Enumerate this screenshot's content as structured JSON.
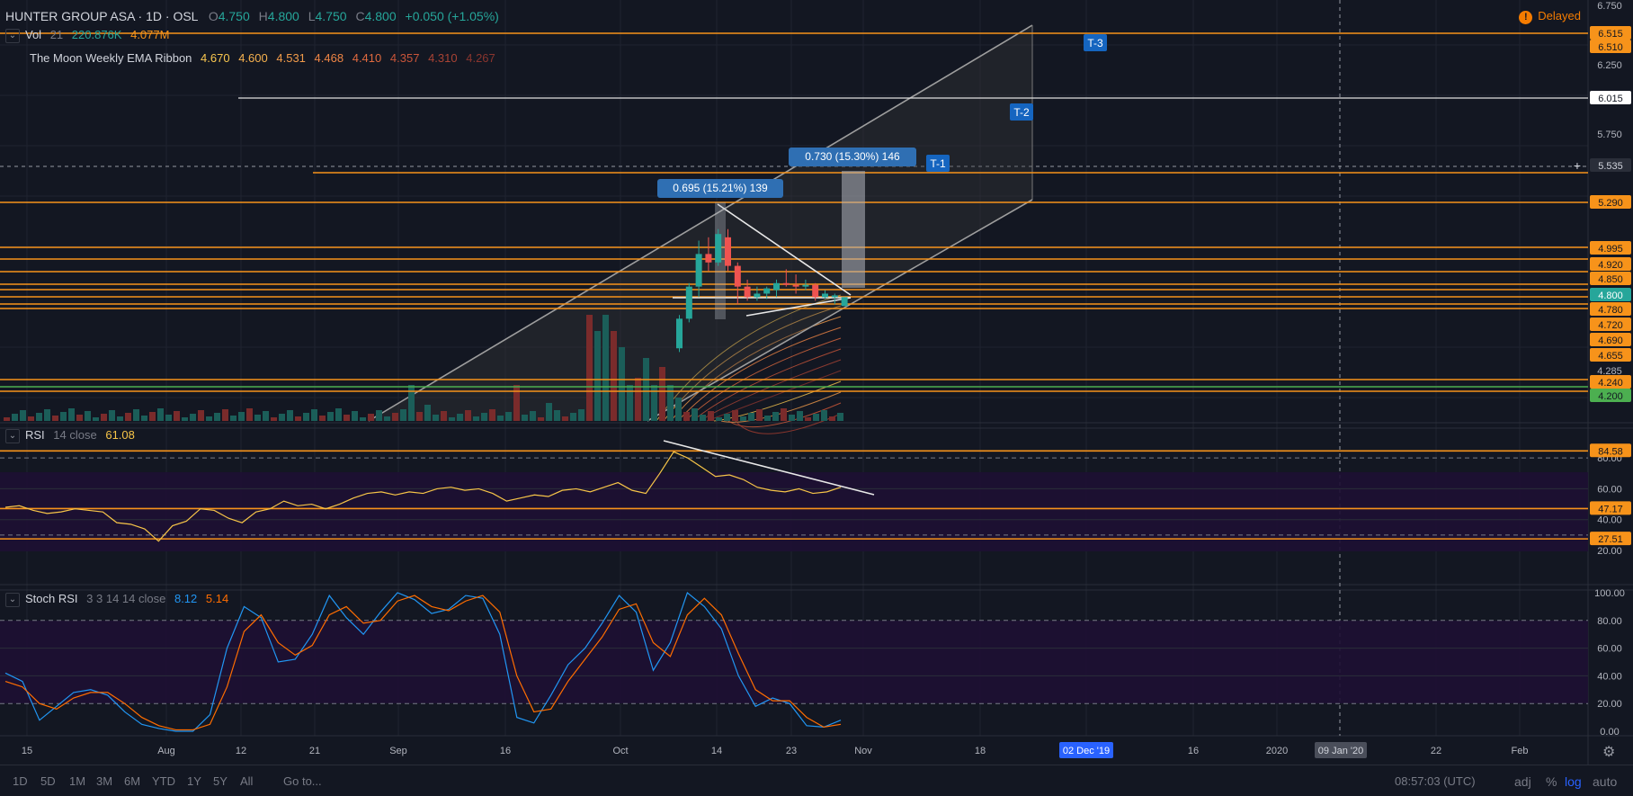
{
  "header": {
    "symbol": "HUNTER GROUP ASA · 1D · OSL",
    "open_label": "O",
    "open": "4.750",
    "high_label": "H",
    "high": "4.800",
    "low_label": "L",
    "low": "4.750",
    "close_label": "C",
    "close": "4.800",
    "change": "+0.050 (+1.05%)"
  },
  "delayed_label": "Delayed",
  "delayed_icon": "exclamation-icon",
  "vol_row": {
    "name": "Vol",
    "param": "21",
    "v1": "220.876K",
    "v2": "4.077M"
  },
  "ema_row": {
    "name": "The Moon Weekly EMA Ribbon",
    "values": [
      "4.670",
      "4.600",
      "4.531",
      "4.468",
      "4.410",
      "4.357",
      "4.310",
      "4.267"
    ]
  },
  "rsi_row": {
    "name": "RSI",
    "param": "14 close",
    "value": "61.08"
  },
  "stoch_row": {
    "name": "Stoch RSI",
    "param": "3 3 14 14 close",
    "k": "8.12",
    "d": "5.14"
  },
  "clock": "08:57:03 (UTC)",
  "ranges": [
    "1D",
    "5D",
    "1M",
    "3M",
    "6M",
    "YTD",
    "1Y",
    "5Y",
    "All"
  ],
  "goto_label": "Go to...",
  "bottom_options": {
    "adj": "adj",
    "percent": "%",
    "log": "log",
    "auto": "auto"
  },
  "colors": {
    "up": "#26a69a",
    "down": "#ef5350",
    "level": "#f7931a",
    "accent": "#2962ff",
    "panel_purple": "#1e0f33"
  },
  "chart_data": [
    {
      "type": "candlestick",
      "panel": "price",
      "y_ticks": [
        "6.750",
        "6.250",
        "5.750",
        "4.285"
      ],
      "price_levels": [
        "6.515",
        "6.510",
        "6.015",
        "5.535",
        "5.290",
        "4.995",
        "4.920",
        "4.850",
        "4.800",
        "4.780",
        "4.720",
        "4.690",
        "4.655",
        "4.240",
        "4.200"
      ],
      "targets": [
        "T-1",
        "T-2",
        "T-3"
      ],
      "measurements": [
        "0.695 (15.21%) 139",
        "0.730 (15.30%) 146"
      ],
      "x_labels": [
        "15",
        "Aug",
        "12",
        "21",
        "Sep",
        "16",
        "Oct",
        "14",
        "23",
        "Nov",
        "18",
        "02 Dec '19",
        "16",
        "2020",
        "09 Jan '20",
        "22",
        "Feb"
      ],
      "candles": [
        {
          "o": 4.52,
          "h": 4.7,
          "l": 4.5,
          "c": 4.68
        },
        {
          "o": 4.68,
          "h": 4.88,
          "l": 4.66,
          "c": 4.86
        },
        {
          "o": 4.86,
          "h": 5.13,
          "l": 4.8,
          "c": 5.05
        },
        {
          "o": 5.05,
          "h": 5.15,
          "l": 4.95,
          "c": 5.0
        },
        {
          "o": 5.0,
          "h": 5.2,
          "l": 4.98,
          "c": 5.17
        },
        {
          "o": 5.15,
          "h": 5.2,
          "l": 4.95,
          "c": 4.98
        },
        {
          "o": 4.98,
          "h": 5.0,
          "l": 4.76,
          "c": 4.86
        },
        {
          "o": 4.86,
          "h": 4.9,
          "l": 4.78,
          "c": 4.8
        },
        {
          "o": 4.8,
          "h": 4.86,
          "l": 4.78,
          "c": 4.82
        },
        {
          "o": 4.82,
          "h": 4.86,
          "l": 4.79,
          "c": 4.85
        },
        {
          "o": 4.84,
          "h": 4.9,
          "l": 4.8,
          "c": 4.88
        },
        {
          "o": 4.88,
          "h": 4.96,
          "l": 4.86,
          "c": 4.87
        },
        {
          "o": 4.87,
          "h": 4.93,
          "l": 4.82,
          "c": 4.86
        },
        {
          "o": 4.86,
          "h": 4.9,
          "l": 4.84,
          "c": 4.87
        },
        {
          "o": 4.87,
          "h": 4.88,
          "l": 4.78,
          "c": 4.8
        },
        {
          "o": 4.8,
          "h": 4.84,
          "l": 4.79,
          "c": 4.82
        },
        {
          "o": 4.8,
          "h": 4.82,
          "l": 4.76,
          "c": 4.81
        },
        {
          "o": 4.75,
          "h": 4.8,
          "l": 4.75,
          "c": 4.8
        }
      ]
    },
    {
      "type": "line",
      "panel": "rsi",
      "y_ticks": [
        "80.00",
        "60.00",
        "40.00",
        "20.00"
      ],
      "levels": [
        "84.58",
        "47.17",
        "27.51"
      ],
      "values": [
        48,
        49,
        46,
        44,
        45,
        47,
        46,
        45,
        38,
        37,
        34,
        26,
        36,
        39,
        47,
        46,
        41,
        38,
        45,
        47,
        52,
        49,
        50,
        47,
        50,
        54,
        57,
        58,
        56,
        58,
        57,
        60,
        61,
        59,
        60,
        57,
        52,
        54,
        56,
        55,
        59,
        60,
        58,
        61,
        64,
        59,
        57,
        70,
        84,
        80,
        74,
        68,
        69,
        66,
        61,
        59,
        58,
        60,
        57,
        58,
        61
      ]
    },
    {
      "type": "line",
      "panel": "stoch_rsi",
      "y_ticks": [
        "100.00",
        "80.00",
        "60.00",
        "40.00",
        "20.00",
        "0.00"
      ],
      "series": [
        {
          "name": "K",
          "values": [
            42,
            36,
            8,
            18,
            28,
            30,
            26,
            14,
            5,
            2,
            0,
            0,
            12,
            60,
            90,
            82,
            50,
            52,
            70,
            98,
            82,
            70,
            86,
            100,
            95,
            85,
            88,
            98,
            96,
            70,
            10,
            6,
            26,
            48,
            60,
            78,
            98,
            86,
            44,
            64,
            100,
            90,
            74,
            40,
            18,
            24,
            20,
            4,
            3,
            8
          ]
        },
        {
          "name": "D",
          "values": [
            36,
            32,
            20,
            16,
            24,
            28,
            28,
            20,
            10,
            4,
            1,
            1,
            5,
            32,
            72,
            84,
            64,
            55,
            62,
            84,
            90,
            78,
            80,
            94,
            98,
            90,
            87,
            94,
            98,
            86,
            40,
            14,
            16,
            36,
            52,
            68,
            88,
            92,
            64,
            54,
            84,
            96,
            84,
            56,
            30,
            22,
            22,
            10,
            3,
            5
          ]
        }
      ]
    }
  ]
}
